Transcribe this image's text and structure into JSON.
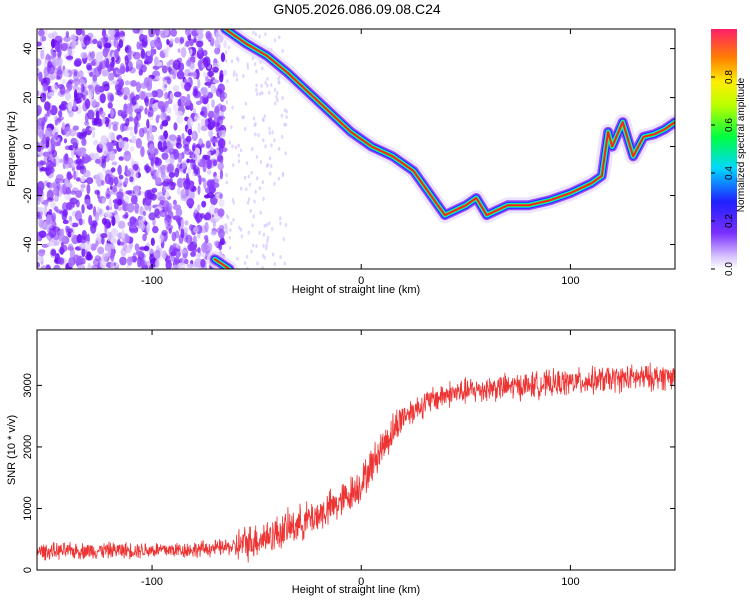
{
  "title": "GN05.2026.086.09.08.C24",
  "chart_data": [
    {
      "type": "heatmap",
      "title": "GN05.2026.086.09.08.C24",
      "xlabel": "Height of straight line (km)",
      "ylabel": "Frequency (Hz)",
      "xlim": [
        -155,
        150
      ],
      "ylim": [
        -50,
        48
      ],
      "xticks": [
        -100,
        0,
        100
      ],
      "xtick_labels": [
        "-100",
        "0",
        "100"
      ],
      "yticks": [
        -40,
        -20,
        0,
        20,
        40
      ],
      "ytick_labels": [
        "-40",
        "-20",
        "0",
        "20",
        "40"
      ],
      "colorbar": {
        "label": "Normalized spectral amplitude",
        "range": [
          0,
          1
        ],
        "ticks": [
          0.0,
          0.2,
          0.4,
          0.6,
          0.8
        ],
        "tick_labels": [
          "0.0",
          "0.2",
          "0.4",
          "0.6",
          "0.8"
        ]
      },
      "ridge_track": {
        "x": [
          -65,
          -55,
          -45,
          -35,
          -25,
          -15,
          -5,
          5,
          15,
          25,
          35,
          40,
          45,
          50,
          55,
          60,
          65,
          70,
          80,
          90,
          100,
          110,
          115,
          118,
          120,
          125,
          130,
          135,
          140,
          145,
          150
        ],
        "y": [
          48,
          42,
          37,
          30,
          22,
          14,
          6,
          0,
          -4,
          -10,
          -22,
          -28,
          -26,
          -24,
          -21,
          -28,
          -26,
          -24,
          -24,
          -22,
          -19,
          -15,
          -12,
          6,
          0,
          10,
          -4,
          4,
          5,
          7,
          10
        ]
      },
      "low_branch": {
        "x": [
          -70,
          -63
        ],
        "y": [
          -46,
          -50
        ]
      },
      "noise_region_x": [
        -155,
        -65
      ]
    },
    {
      "type": "line",
      "xlabel": "Height of straight line (km)",
      "ylabel": "SNR (10 * v/v)",
      "xlim": [
        -155,
        150
      ],
      "ylim": [
        0,
        3900
      ],
      "xticks": [
        -100,
        0,
        100
      ],
      "xtick_labels": [
        "-100",
        "0",
        "100"
      ],
      "yticks": [
        0,
        1000,
        2000,
        3000
      ],
      "ytick_labels": [
        "0",
        "1000",
        "2000",
        "3000"
      ],
      "series": [
        {
          "name": "SNR",
          "color": "#ee3333",
          "trend_x": [
            -155,
            -120,
            -80,
            -60,
            -40,
            -20,
            -10,
            0,
            10,
            20,
            30,
            40,
            60,
            80,
            100,
            120,
            150
          ],
          "trend_y": [
            300,
            320,
            330,
            380,
            600,
            900,
            1100,
            1400,
            2000,
            2500,
            2700,
            2850,
            2950,
            3000,
            3050,
            3100,
            3150
          ]
        }
      ]
    }
  ]
}
